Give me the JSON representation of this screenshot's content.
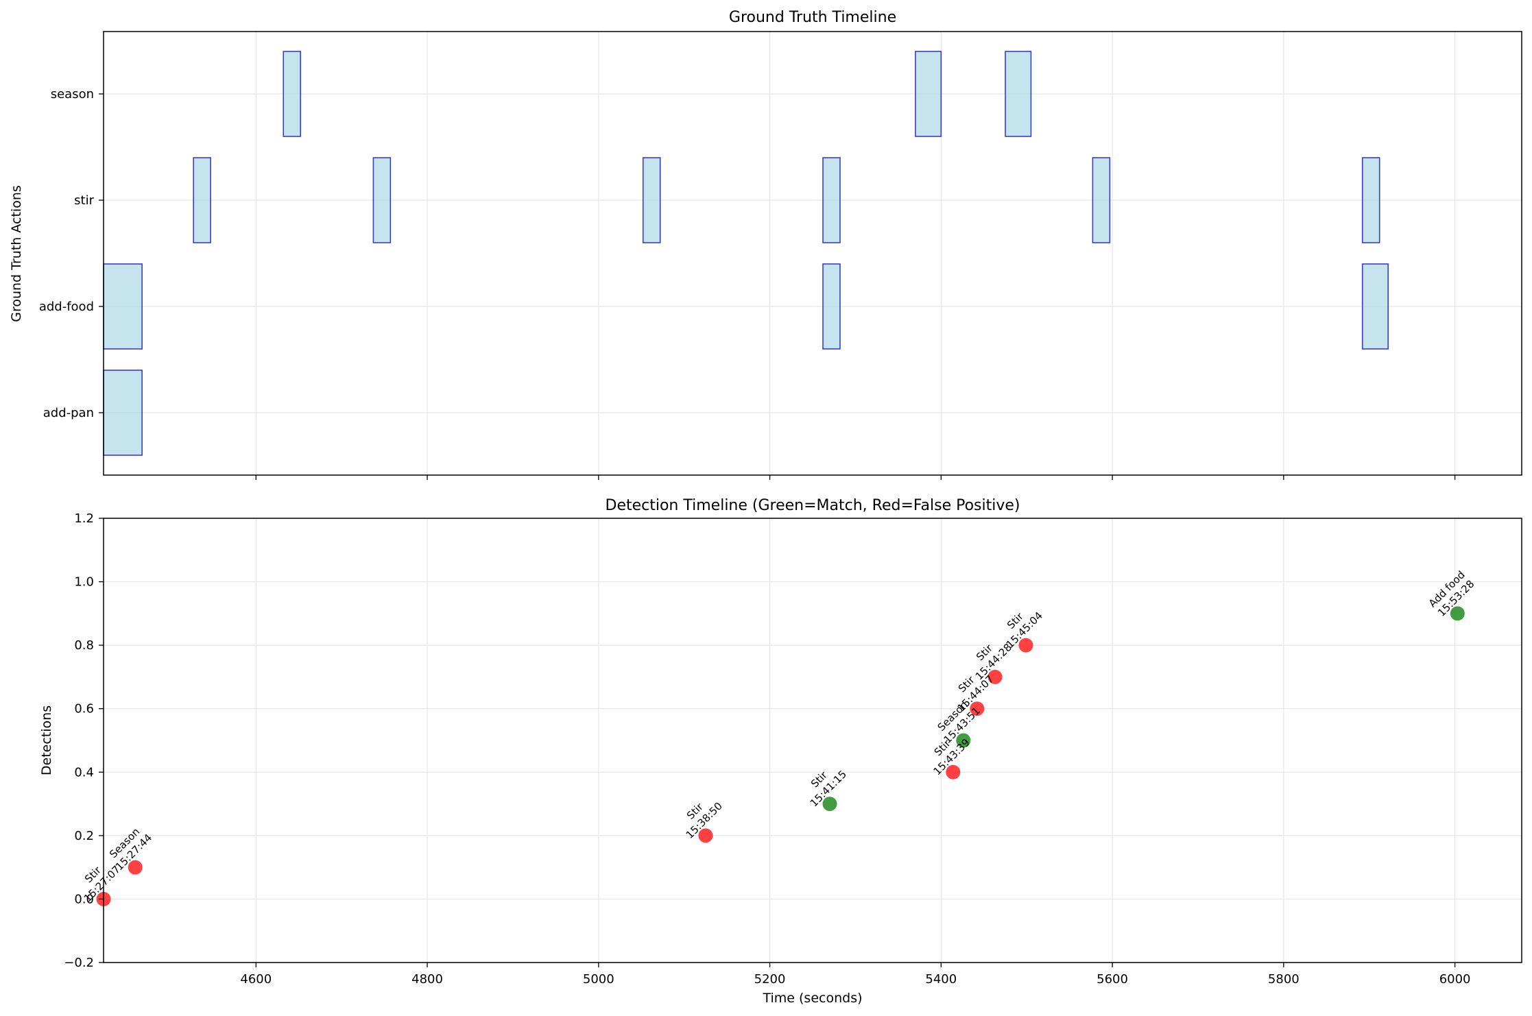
{
  "chart_data": [
    {
      "type": "timeline",
      "title": "Ground Truth Timeline",
      "ylabel": "Ground Truth Actions",
      "xlim": [
        4422,
        6078
      ],
      "grid": true,
      "categories": [
        "add-pan",
        "add-food",
        "stir",
        "season"
      ],
      "segment_color": "#add8e6",
      "edge_color": "#0000cc",
      "segments": [
        {
          "label": "add-pan",
          "start": 4422,
          "end": 4467
        },
        {
          "label": "add-food",
          "start": 4422,
          "end": 4467
        },
        {
          "label": "stir",
          "start": 4527,
          "end": 4547
        },
        {
          "label": "season",
          "start": 4632,
          "end": 4652
        },
        {
          "label": "stir",
          "start": 4737,
          "end": 4757
        },
        {
          "label": "stir",
          "start": 5052,
          "end": 5072
        },
        {
          "label": "stir",
          "start": 5262,
          "end": 5282
        },
        {
          "label": "add-food",
          "start": 5262,
          "end": 5282
        },
        {
          "label": "season",
          "start": 5370,
          "end": 5400
        },
        {
          "label": "season",
          "start": 5475,
          "end": 5505
        },
        {
          "label": "stir",
          "start": 5577,
          "end": 5597
        },
        {
          "label": "stir",
          "start": 5892,
          "end": 5912
        },
        {
          "label": "add-food",
          "start": 5892,
          "end": 5922
        }
      ]
    },
    {
      "type": "scatter",
      "title": "Detection Timeline (Green=Match, Red=False Positive)",
      "xlabel": "Time (seconds)",
      "ylabel": "Detections",
      "xlim": [
        4422,
        6078
      ],
      "ylim": [
        -0.2,
        1.2
      ],
      "yticks": [
        -0.2,
        0.0,
        0.2,
        0.4,
        0.6,
        0.8,
        1.0,
        1.2
      ],
      "xticks": [
        4600,
        4800,
        5000,
        5200,
        5400,
        5600,
        5800,
        6000
      ],
      "grid": true,
      "colors": {
        "match": "#228B22",
        "false_positive": "#ff2020"
      },
      "points": [
        {
          "x": 4422,
          "y": 0.0,
          "label": "Stir",
          "time": "15:27:07",
          "status": "false_positive"
        },
        {
          "x": 4459,
          "y": 0.1,
          "label": "Season",
          "time": "15:27:44",
          "status": "false_positive"
        },
        {
          "x": 5125,
          "y": 0.2,
          "label": "Stir",
          "time": "15:38:50",
          "status": "false_positive"
        },
        {
          "x": 5270,
          "y": 0.3,
          "label": "Stir",
          "time": "15:41:15",
          "status": "match"
        },
        {
          "x": 5414,
          "y": 0.4,
          "label": "Stir",
          "time": "15:43:39",
          "status": "false_positive"
        },
        {
          "x": 5426,
          "y": 0.5,
          "label": "Season",
          "time": "15:43:51",
          "status": "match"
        },
        {
          "x": 5442,
          "y": 0.6,
          "label": "Stir",
          "time": "15:44:07",
          "status": "false_positive"
        },
        {
          "x": 5463,
          "y": 0.7,
          "label": "Stir",
          "time": "15:44:28",
          "status": "false_positive"
        },
        {
          "x": 5499,
          "y": 0.8,
          "label": "Stir",
          "time": "15:45:04",
          "status": "false_positive"
        },
        {
          "x": 6003,
          "y": 0.9,
          "label": "Add food",
          "time": "15:53:28",
          "status": "match"
        }
      ]
    }
  ]
}
